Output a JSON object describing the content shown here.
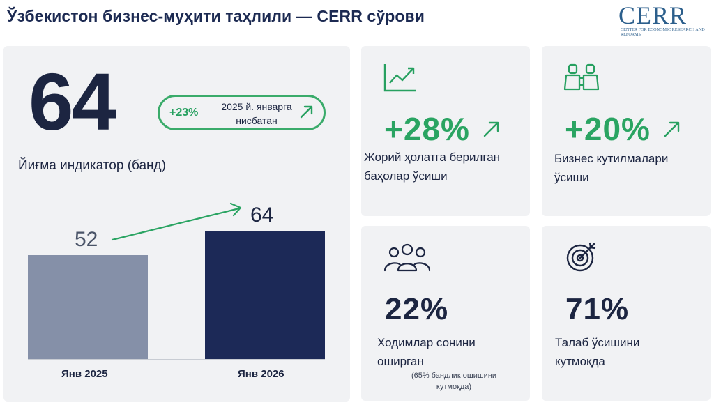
{
  "header": {
    "title": "Ўзбекистон бизнес-муҳити таҳлили — CERR сўрови",
    "logo_word": "CERR",
    "logo_subtitle": "Center for Economic Research and Reforms"
  },
  "main": {
    "big_number": "64",
    "caption": "Йиғма индикатор (банд)",
    "badge": {
      "percent": "+23%",
      "text": "2025 й. январга нисбатан"
    }
  },
  "chart_data": {
    "type": "bar",
    "categories": [
      "Янв 2025",
      "Янв 2026"
    ],
    "values": [
      52,
      64
    ],
    "value_labels": [
      "52",
      "64"
    ],
    "colors": [
      "#8590a8",
      "#1c2957"
    ]
  },
  "cards": [
    {
      "value": "+28%",
      "text_line1": "Жорий ҳолатга берилган",
      "text_line2": "баҳолар ўсиши",
      "icon": "line-chart-icon"
    },
    {
      "value": "+20%",
      "text_line1": "Бизнес кутилмалари",
      "text_line2": "ўсиши",
      "icon": "binoculars-icon"
    },
    {
      "value": "22%",
      "text_line1": "Ходимлар сонини",
      "text_line2": "оширган",
      "note_line1": "(65% бандлик ошишини",
      "note_line2": "кутмоқда)",
      "icon": "people-group-icon"
    },
    {
      "value": "71%",
      "text_line1": "Талаб ўсишини",
      "text_line2": "кутмоқда",
      "icon": "target-icon"
    }
  ],
  "colors": {
    "accent_green": "#2aa462",
    "navy": "#1c2957",
    "grey_bar": "#8590a8",
    "panel_bg": "#f1f2f4"
  }
}
